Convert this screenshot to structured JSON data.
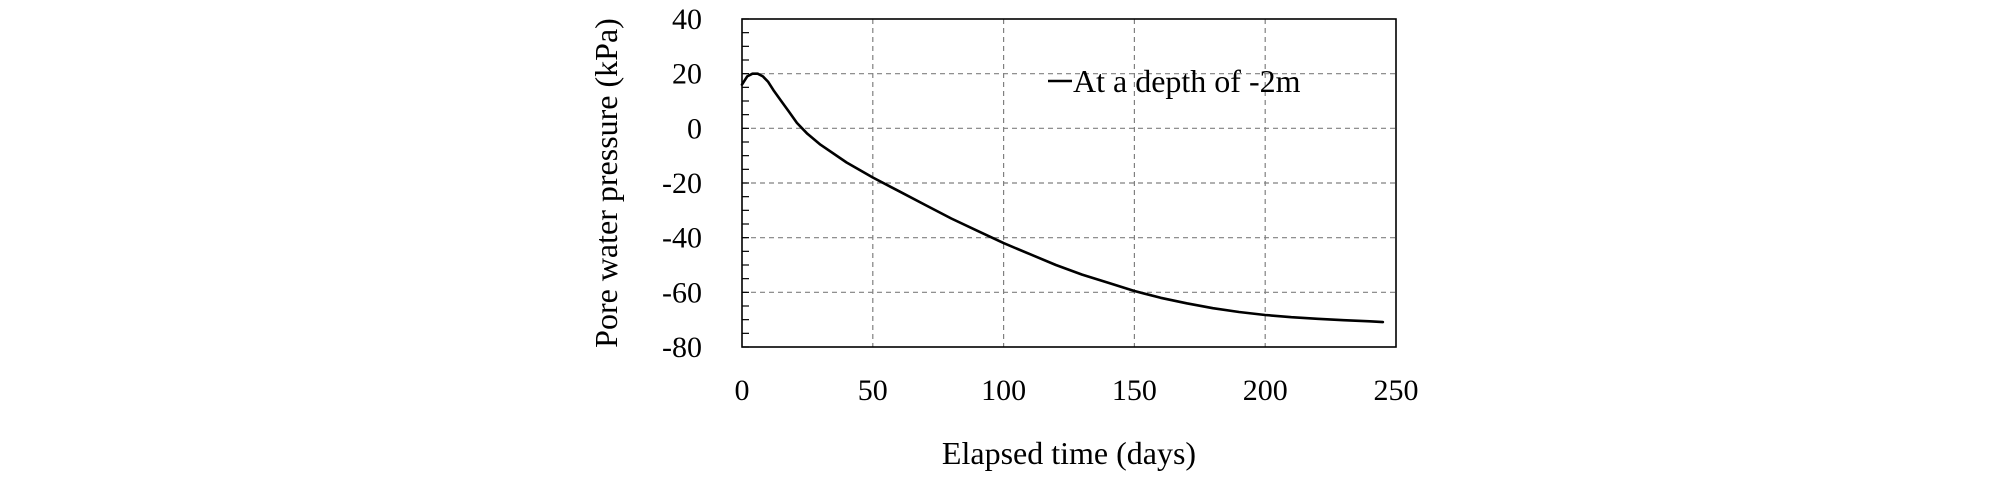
{
  "chart_data": {
    "type": "line",
    "xlabel": "Elapsed time (days)",
    "ylabel": "Pore water pressure (kPa)",
    "xlim": [
      0,
      250
    ],
    "ylim": [
      -80,
      40
    ],
    "x_ticks": [
      0,
      50,
      100,
      150,
      200,
      250
    ],
    "y_ticks": [
      40,
      20,
      0,
      -20,
      -40,
      -60,
      -80
    ],
    "grid": true,
    "grid_style": "dashed",
    "legend_position": "top-right",
    "series": [
      {
        "name": "At a depth of -2m",
        "color": "#000000",
        "x": [
          0,
          2,
          4,
          6,
          8,
          10,
          12,
          15,
          18,
          21,
          25,
          30,
          40,
          50,
          60,
          70,
          80,
          90,
          100,
          110,
          120,
          130,
          140,
          150,
          160,
          170,
          180,
          190,
          200,
          210,
          220,
          230,
          240,
          245
        ],
        "y": [
          16,
          19,
          20,
          20,
          19,
          17,
          14,
          10,
          6,
          2,
          -2,
          -6,
          -12.5,
          -18,
          -23,
          -28,
          -33,
          -37.5,
          -42,
          -46,
          -50,
          -53.5,
          -56.5,
          -59.5,
          -62,
          -64,
          -65.8,
          -67.2,
          -68.3,
          -69.1,
          -69.7,
          -70.2,
          -70.6,
          -70.9
        ]
      }
    ]
  }
}
